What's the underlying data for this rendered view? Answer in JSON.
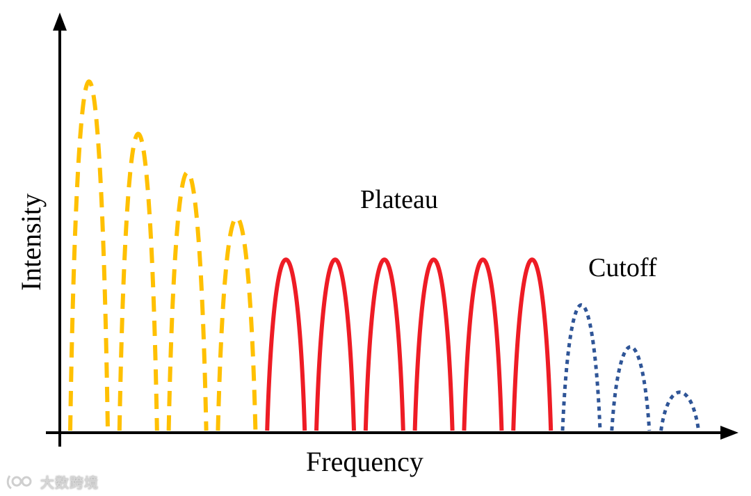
{
  "diagram": {
    "x_axis_label": "Frequency",
    "y_axis_label": "Intensity",
    "regions": {
      "plateau": {
        "label": "Plateau",
        "color": "#ee1c25",
        "style": "solid",
        "peak_count": 6
      },
      "cutoff": {
        "label": "Cutoff",
        "color": "#2f5597",
        "style": "dotted",
        "peak_count": 3
      },
      "perturbative": {
        "label": "",
        "color": "#ffc000",
        "style": "dashed",
        "peak_count": 4
      }
    }
  },
  "chart_data": {
    "type": "line",
    "title": "",
    "xlabel": "Frequency",
    "ylabel": "Intensity",
    "series": [
      {
        "name": "",
        "style": "dashed",
        "color": "#ffc000",
        "peak_heights": [
          1.0,
          0.85,
          0.74,
          0.61
        ]
      },
      {
        "name": "Plateau",
        "style": "solid",
        "color": "#ee1c25",
        "peak_heights": [
          0.49,
          0.49,
          0.49,
          0.49,
          0.49,
          0.49
        ]
      },
      {
        "name": "Cutoff",
        "style": "dotted",
        "color": "#2f5597",
        "peak_heights": [
          0.36,
          0.24,
          0.11
        ]
      }
    ]
  },
  "watermark": {
    "text": "大数跨境",
    "logo_icon": "brand-logo-icon"
  }
}
